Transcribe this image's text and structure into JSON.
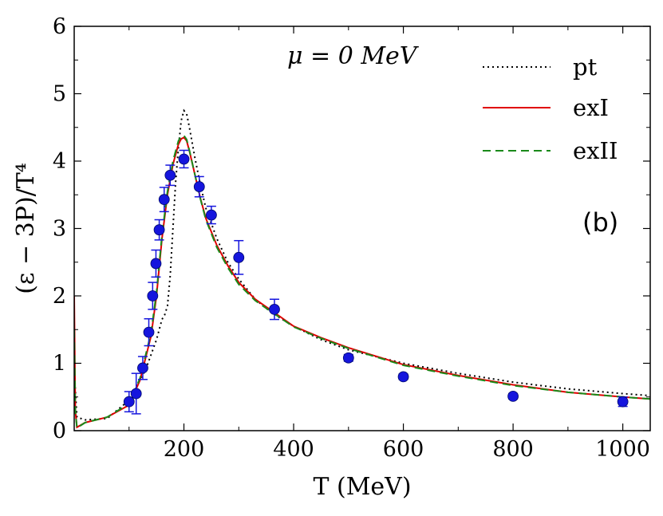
{
  "chart_data": {
    "type": "line",
    "title": "",
    "xlabel": "T (MeV)",
    "ylabel": "(ε − 3P)/T⁴",
    "xlim": [
      0,
      1050
    ],
    "ylim": [
      0,
      6
    ],
    "xticks": [
      200,
      400,
      600,
      800,
      1000
    ],
    "xtick_labels": [
      "200",
      "400",
      "600",
      "800",
      "1000"
    ],
    "yticks": [
      0,
      1,
      2,
      3,
      4,
      5,
      6
    ],
    "ytick_labels": [
      "0",
      "1",
      "2",
      "3",
      "4",
      "5",
      "6"
    ],
    "grid": false,
    "legend_position": "top-right",
    "annotation": "μ = 0 MeV",
    "panel_label": "(b)",
    "series": [
      {
        "name": "pt",
        "style": "dotted",
        "color": "#000000",
        "x": [
          0,
          2,
          5,
          20,
          60,
          100,
          130,
          150,
          160,
          165,
          170,
          175,
          180,
          185,
          190,
          195,
          200,
          205,
          210,
          220,
          230,
          240,
          260,
          280,
          300,
          330,
          360,
          400,
          450,
          500,
          600,
          700,
          800,
          900,
          1000,
          1050
        ],
        "y": [
          1.0,
          0.6,
          0.2,
          0.16,
          0.18,
          0.45,
          0.9,
          1.35,
          1.65,
          1.72,
          1.85,
          2.3,
          3.0,
          3.7,
          4.2,
          4.6,
          4.75,
          4.7,
          4.5,
          4.05,
          3.65,
          3.3,
          2.85,
          2.5,
          2.25,
          1.95,
          1.75,
          1.55,
          1.35,
          1.2,
          1.0,
          0.85,
          0.72,
          0.62,
          0.55,
          0.52
        ]
      },
      {
        "name": "exI",
        "style": "solid",
        "color": "#e00000",
        "x": [
          0,
          2,
          5,
          20,
          60,
          100,
          120,
          140,
          150,
          160,
          170,
          180,
          190,
          195,
          200,
          205,
          210,
          220,
          230,
          240,
          260,
          280,
          300,
          330,
          360,
          400,
          450,
          500,
          600,
          700,
          800,
          900,
          1000,
          1050
        ],
        "y": [
          2.0,
          0.3,
          0.05,
          0.12,
          0.2,
          0.38,
          0.75,
          1.4,
          2.0,
          2.85,
          3.5,
          3.95,
          4.25,
          4.33,
          4.35,
          4.3,
          4.15,
          3.8,
          3.45,
          3.15,
          2.75,
          2.45,
          2.2,
          1.95,
          1.78,
          1.55,
          1.38,
          1.23,
          0.98,
          0.82,
          0.68,
          0.57,
          0.5,
          0.47
        ]
      },
      {
        "name": "exII",
        "style": "dashed",
        "color": "#1a8a1a",
        "x": [
          0,
          2,
          5,
          20,
          60,
          100,
          120,
          140,
          150,
          160,
          170,
          180,
          190,
          195,
          200,
          205,
          210,
          220,
          230,
          240,
          260,
          280,
          300,
          330,
          360,
          400,
          450,
          500,
          600,
          700,
          800,
          900,
          1000,
          1050
        ],
        "y": [
          1.5,
          0.3,
          0.04,
          0.12,
          0.2,
          0.4,
          0.78,
          1.45,
          2.05,
          2.9,
          3.55,
          4.0,
          4.3,
          4.37,
          4.38,
          4.32,
          4.16,
          3.8,
          3.44,
          3.13,
          2.72,
          2.42,
          2.17,
          1.93,
          1.76,
          1.54,
          1.37,
          1.22,
          0.97,
          0.81,
          0.67,
          0.57,
          0.5,
          0.47
        ]
      }
    ],
    "data_points": {
      "name": "data",
      "color": "#1515dd",
      "points": [
        {
          "x": 100,
          "y": 0.43,
          "err": 0.15
        },
        {
          "x": 113,
          "y": 0.55,
          "err": 0.3
        },
        {
          "x": 125,
          "y": 0.93,
          "err": 0.17
        },
        {
          "x": 136,
          "y": 1.46,
          "err": 0.2
        },
        {
          "x": 143,
          "y": 2.0,
          "err": 0.2
        },
        {
          "x": 149,
          "y": 2.48,
          "err": 0.2
        },
        {
          "x": 155,
          "y": 2.98,
          "err": 0.15
        },
        {
          "x": 164,
          "y": 3.43,
          "err": 0.18
        },
        {
          "x": 175,
          "y": 3.79,
          "err": 0.15
        },
        {
          "x": 200,
          "y": 4.03,
          "err": 0.13
        },
        {
          "x": 228,
          "y": 3.62,
          "err": 0.15
        },
        {
          "x": 250,
          "y": 3.2,
          "err": 0.13
        },
        {
          "x": 300,
          "y": 2.57,
          "err": 0.25
        },
        {
          "x": 365,
          "y": 1.8,
          "err": 0.15
        },
        {
          "x": 500,
          "y": 1.08,
          "err": 0.05
        },
        {
          "x": 600,
          "y": 0.8,
          "err": 0.04
        },
        {
          "x": 800,
          "y": 0.51,
          "err": 0.04
        },
        {
          "x": 1000,
          "y": 0.43,
          "err": 0.07
        }
      ]
    }
  }
}
